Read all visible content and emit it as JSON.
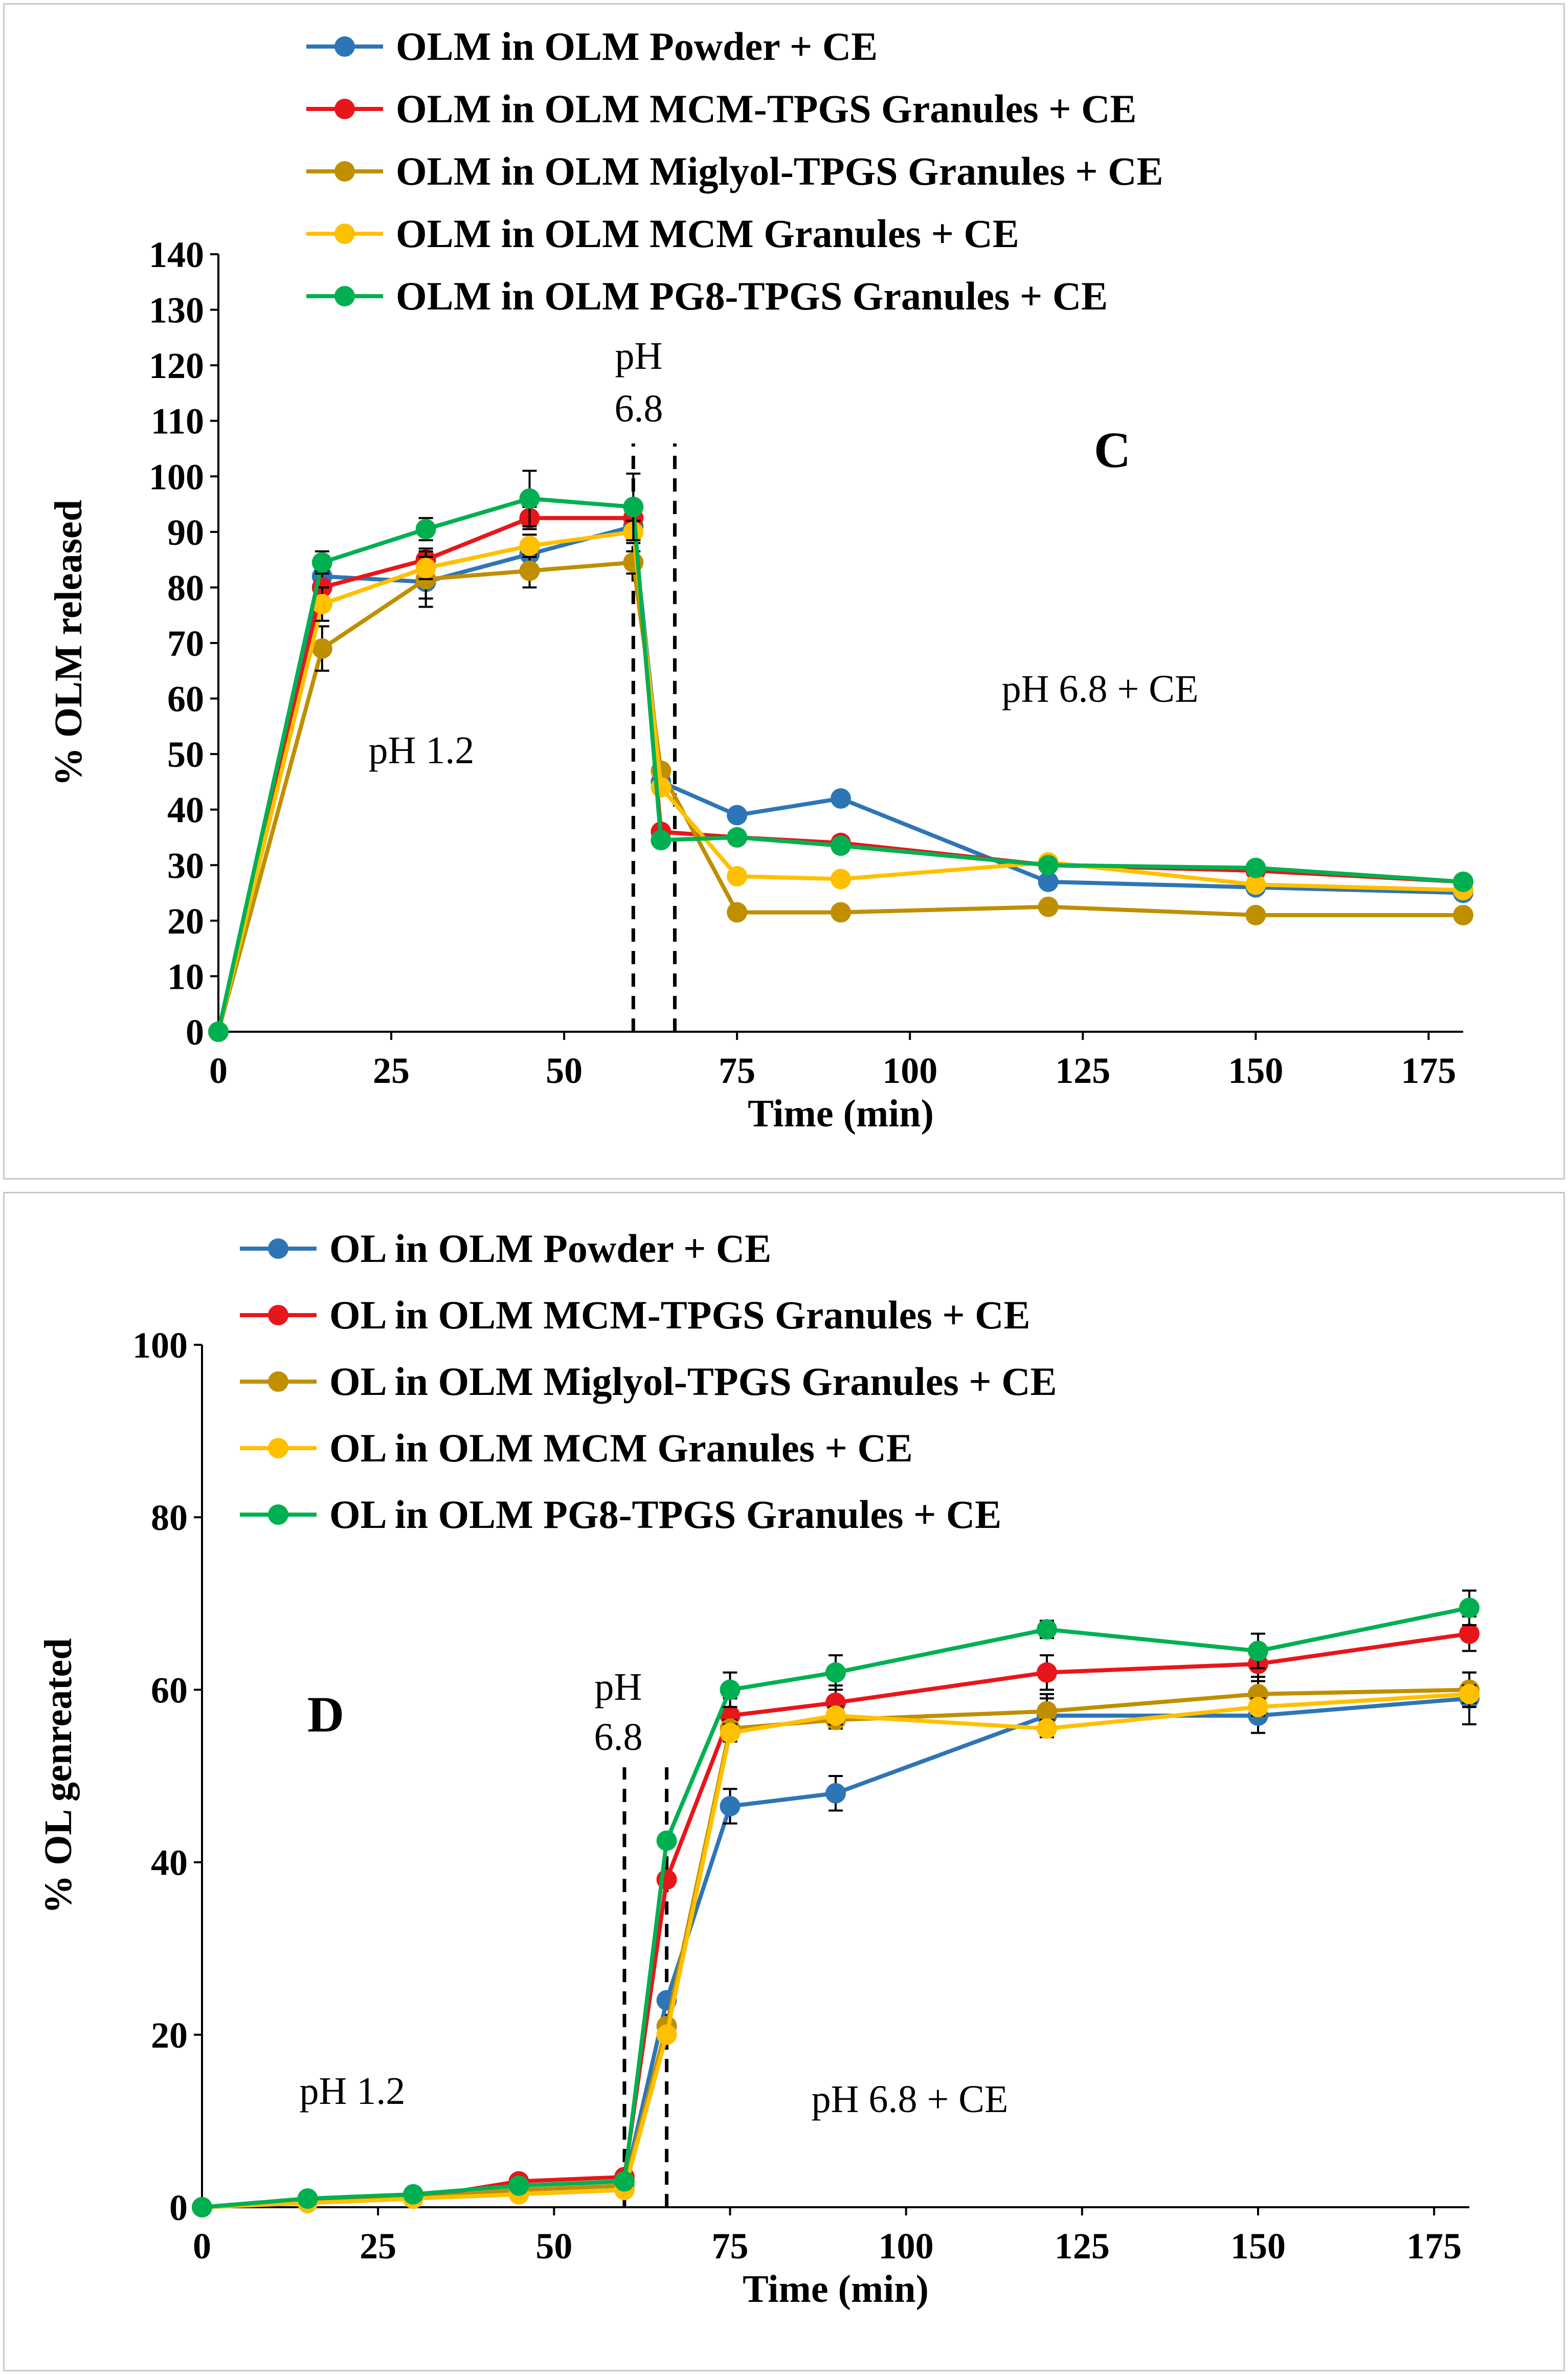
{
  "figure": {
    "charts": [
      "panel-c",
      "panel-d"
    ]
  },
  "chart_data": [
    {
      "type": "line",
      "panel_label": "C",
      "xlabel": "Time (min)",
      "ylabel": "% OLM released",
      "xlim": [
        0,
        180
      ],
      "ylim": [
        0,
        140
      ],
      "xticks": [
        "0",
        "25",
        "50",
        "75",
        "100",
        "125",
        "150",
        "175"
      ],
      "yticks": [
        "0",
        "10",
        "20",
        "30",
        "40",
        "50",
        "60",
        "70",
        "80",
        "90",
        "100",
        "110",
        "120",
        "130",
        "140"
      ],
      "annotations": {
        "ph_start": "pH 1.2",
        "ph_switch_line1": "pH",
        "ph_switch_line2": "6.8",
        "ph_end": "pH 6.8 + CE"
      },
      "vlines": [
        60,
        66
      ],
      "x": [
        0,
        15,
        30,
        45,
        60,
        64,
        75,
        90,
        120,
        150,
        180
      ],
      "series": [
        {
          "name": "OLM in OLM Powder + CE",
          "color": "#2e75b6",
          "values": [
            0,
            82,
            81,
            86,
            91,
            45,
            39,
            42,
            27,
            26,
            25
          ],
          "errors": [
            0,
            2,
            3,
            2,
            2,
            0,
            0,
            0,
            0,
            0,
            0
          ]
        },
        {
          "name": "OLM in OLM MCM-TPGS Granules + CE",
          "color": "#e8161b",
          "values": [
            0,
            80,
            85,
            92.5,
            92.5,
            36,
            35,
            34,
            30,
            29,
            27
          ],
          "errors": [
            0,
            3,
            2,
            2,
            2,
            0,
            0,
            0,
            0,
            0,
            0
          ]
        },
        {
          "name": "OLM in OLM Miglyol-TPGS Granules + CE",
          "color": "#bf8f00",
          "values": [
            0,
            69,
            81.5,
            83,
            84.5,
            47,
            21.5,
            21.5,
            22.5,
            21,
            21
          ],
          "errors": [
            0,
            4,
            5,
            3,
            2,
            0,
            0,
            0,
            0,
            0,
            0
          ]
        },
        {
          "name": "OLM in OLM MCM Granules + CE",
          "color": "#ffc000",
          "values": [
            0,
            77,
            83.5,
            87.5,
            90,
            44,
            28,
            27.5,
            30.5,
            26.5,
            25.5
          ],
          "errors": [
            0,
            3,
            2,
            2,
            2,
            0,
            0,
            0,
            0,
            0,
            0
          ]
        },
        {
          "name": "OLM in OLM PG8-TPGS Granules + CE",
          "color": "#00b050",
          "values": [
            0,
            84.5,
            90.5,
            96,
            94.5,
            34.5,
            35,
            33.5,
            30,
            29.5,
            27
          ],
          "errors": [
            0,
            2,
            2,
            5,
            6,
            0,
            0,
            0,
            0,
            0,
            0
          ]
        }
      ]
    },
    {
      "type": "line",
      "panel_label": "D",
      "xlabel": "Time (min)",
      "ylabel": "% OL genreated",
      "xlim": [
        0,
        180
      ],
      "ylim": [
        0,
        100
      ],
      "xticks": [
        "0",
        "25",
        "50",
        "75",
        "100",
        "125",
        "150",
        "175"
      ],
      "yticks": [
        "0",
        "20",
        "40",
        "60",
        "80",
        "100"
      ],
      "annotations": {
        "ph_start": "pH 1.2",
        "ph_switch_line1": "pH",
        "ph_switch_line2": "6.8",
        "ph_end": "pH 6.8 + CE"
      },
      "vlines": [
        60,
        66
      ],
      "x": [
        0,
        15,
        30,
        45,
        60,
        66,
        75,
        90,
        120,
        150,
        180
      ],
      "series": [
        {
          "name": "OL in OLM Powder + CE",
          "color": "#2e75b6",
          "values": [
            0,
            0.5,
            1,
            2,
            2.5,
            24,
            46.5,
            48,
            57,
            57,
            59
          ],
          "errors": [
            0,
            0,
            0,
            0,
            0,
            0,
            2,
            2,
            2,
            2,
            3
          ]
        },
        {
          "name": "OL in OLM MCM-TPGS Granules + CE",
          "color": "#e8161b",
          "values": [
            0,
            1,
            1,
            3,
            3.5,
            38,
            57,
            58.5,
            62,
            63,
            66.5
          ],
          "errors": [
            0,
            0,
            0,
            0,
            0,
            0,
            2,
            2,
            2,
            2,
            2
          ]
        },
        {
          "name": "OL in OLM Miglyol-TPGS Granules + CE",
          "color": "#bf8f00",
          "values": [
            0,
            0.5,
            1,
            2,
            2.5,
            21,
            55.5,
            56.5,
            57.5,
            59.5,
            60
          ],
          "errors": [
            0,
            0,
            0,
            0,
            0,
            0,
            1,
            1,
            2,
            2,
            2
          ]
        },
        {
          "name": "OL in OLM MCM Granules + CE",
          "color": "#ffc000",
          "values": [
            0,
            0.5,
            1,
            1.5,
            2,
            20,
            55,
            57,
            55.5,
            58,
            59.5
          ],
          "errors": [
            0,
            0,
            0,
            0,
            0,
            0,
            1,
            1,
            1,
            1,
            1
          ]
        },
        {
          "name": "OL in OLM PG8-TPGS Granules + CE",
          "color": "#00b050",
          "values": [
            0,
            1,
            1.5,
            2.5,
            3,
            42.5,
            60,
            62,
            67,
            64.5,
            69.5
          ],
          "errors": [
            0,
            0,
            0,
            0,
            0,
            0,
            2,
            2,
            1,
            2,
            2
          ]
        }
      ]
    }
  ]
}
